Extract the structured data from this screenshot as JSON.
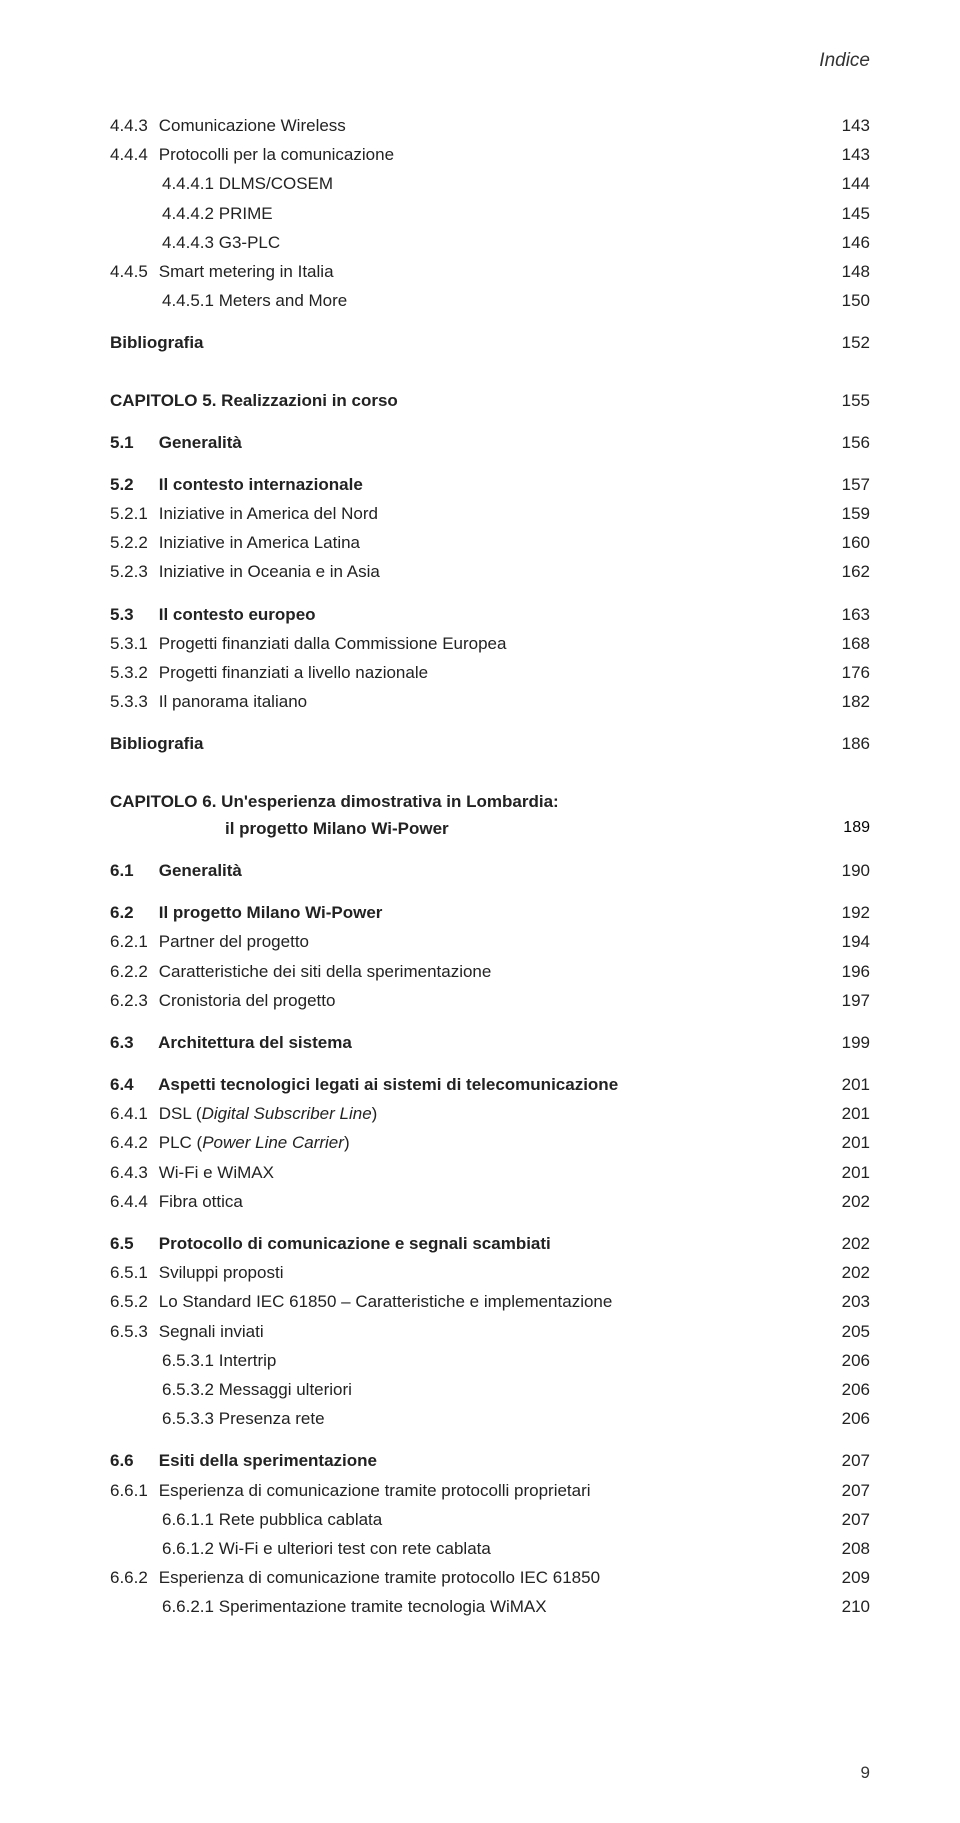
{
  "header": "Indice",
  "page_number": "9",
  "colors": {
    "text": "#222222",
    "header": "#333333",
    "background": "#ffffff"
  },
  "typography": {
    "base_font_size_pt": 13,
    "header_font_size_pt": 14,
    "font_family": "Verdana"
  },
  "entries": [
    {
      "level": 2,
      "indent": 0,
      "num": "4.4.3",
      "title": "Comunicazione Wireless",
      "page": "143"
    },
    {
      "level": 2,
      "indent": 0,
      "num": "4.4.4",
      "title": "Protocolli per la comunicazione",
      "page": "143"
    },
    {
      "level": 3,
      "indent": 3,
      "num": "4.4.4.1",
      "title": "DLMS/COSEM",
      "page": "144"
    },
    {
      "level": 3,
      "indent": 3,
      "num": "4.4.4.2",
      "title": "PRIME",
      "page": "145"
    },
    {
      "level": 3,
      "indent": 3,
      "num": "4.4.4.3",
      "title": "G3-PLC",
      "page": "146"
    },
    {
      "level": 2,
      "indent": 0,
      "num": "4.4.5",
      "title": "Smart metering in Italia",
      "page": "148"
    },
    {
      "level": 3,
      "indent": 3,
      "num": "4.4.5.1",
      "title": "Meters and More",
      "page": "150"
    },
    {
      "level": "biblio",
      "title": "Bibliografia",
      "page": "152"
    },
    {
      "level": 0,
      "indent": 0,
      "num": "CAPITOLO 5.",
      "title": "Realizzazioni in corso",
      "page": "155"
    },
    {
      "level": 1,
      "indent": 0,
      "num": "5.1",
      "title": "Generalità",
      "page": "156"
    },
    {
      "level": 1,
      "indent": 0,
      "num": "5.2",
      "title": "Il contesto internazionale",
      "page": "157"
    },
    {
      "level": 2,
      "indent": 0,
      "num": "5.2.1",
      "title": "Iniziative in America del Nord",
      "page": "159"
    },
    {
      "level": 2,
      "indent": 0,
      "num": "5.2.2",
      "title": "Iniziative in America Latina",
      "page": "160"
    },
    {
      "level": 2,
      "indent": 0,
      "num": "5.2.3",
      "title": "Iniziative in Oceania e in Asia",
      "page": "162"
    },
    {
      "level": 1,
      "indent": 0,
      "num": "5.3",
      "title": "Il contesto europeo",
      "page": "163"
    },
    {
      "level": 2,
      "indent": 0,
      "num": "5.3.1",
      "title": "Progetti finanziati dalla Commissione Europea",
      "page": "168"
    },
    {
      "level": 2,
      "indent": 0,
      "num": "5.3.2",
      "title": "Progetti finanziati a livello nazionale",
      "page": "176"
    },
    {
      "level": 2,
      "indent": 0,
      "num": "5.3.3",
      "title": "Il panorama italiano",
      "page": "182"
    },
    {
      "level": "biblio",
      "title": "Bibliografia",
      "page": "186"
    },
    {
      "level": 0,
      "indent": 0,
      "num": "CAPITOLO 6.",
      "title": "Un'esperienza dimostrativa in Lombardia:",
      "page": ""
    },
    {
      "level": "chap-sub",
      "title": "il progetto Milano Wi-Power",
      "page": "189"
    },
    {
      "level": 1,
      "indent": 0,
      "num": "6.1",
      "title": "Generalità",
      "page": "190"
    },
    {
      "level": 1,
      "indent": 0,
      "num": "6.2",
      "title": "Il progetto Milano Wi-Power",
      "page": "192"
    },
    {
      "level": 2,
      "indent": 0,
      "num": "6.2.1",
      "title": "Partner del progetto",
      "page": "194"
    },
    {
      "level": 2,
      "indent": 0,
      "num": "6.2.2",
      "title": "Caratteristiche dei siti della sperimentazione",
      "page": "196"
    },
    {
      "level": 2,
      "indent": 0,
      "num": "6.2.3",
      "title": "Cronistoria del progetto",
      "page": "197"
    },
    {
      "level": 1,
      "indent": 0,
      "num": "6.3",
      "title": "Architettura del sistema",
      "page": "199"
    },
    {
      "level": 1,
      "indent": 0,
      "num": "6.4",
      "title": "Aspetti tecnologici legati ai sistemi di telecomunicazione",
      "page": "201"
    },
    {
      "level": 2,
      "indent": 0,
      "num": "6.4.1",
      "title": "DSL (Digital Subscriber Line)",
      "page": "201",
      "italic_part": "Digital Subscriber Line"
    },
    {
      "level": 2,
      "indent": 0,
      "num": "6.4.2",
      "title": "PLC (Power Line Carrier)",
      "page": "201",
      "italic_part": "Power Line Carrier"
    },
    {
      "level": 2,
      "indent": 0,
      "num": "6.4.3",
      "title": "Wi-Fi e WiMAX",
      "page": "201"
    },
    {
      "level": 2,
      "indent": 0,
      "num": "6.4.4",
      "title": "Fibra ottica",
      "page": "202"
    },
    {
      "level": 1,
      "indent": 0,
      "num": "6.5",
      "title": "Protocollo di comunicazione e segnali scambiati",
      "page": "202"
    },
    {
      "level": 2,
      "indent": 0,
      "num": "6.5.1",
      "title": "Sviluppi proposti",
      "page": "202"
    },
    {
      "level": 2,
      "indent": 0,
      "num": "6.5.2",
      "title": "Lo Standard IEC 61850 – Caratteristiche e implementazione",
      "page": "203"
    },
    {
      "level": 2,
      "indent": 0,
      "num": "6.5.3",
      "title": "Segnali inviati",
      "page": "205"
    },
    {
      "level": 3,
      "indent": 3,
      "num": "6.5.3.1",
      "title": "Intertrip",
      "page": "206"
    },
    {
      "level": 3,
      "indent": 3,
      "num": "6.5.3.2",
      "title": "Messaggi ulteriori",
      "page": "206"
    },
    {
      "level": 3,
      "indent": 3,
      "num": "6.5.3.3",
      "title": "Presenza rete",
      "page": "206"
    },
    {
      "level": 1,
      "indent": 0,
      "num": "6.6",
      "title": "Esiti della sperimentazione",
      "page": "207"
    },
    {
      "level": 2,
      "indent": 0,
      "num": "6.6.1",
      "title": "Esperienza di comunicazione tramite protocolli proprietari",
      "page": "207"
    },
    {
      "level": 3,
      "indent": 3,
      "num": "6.6.1.1",
      "title": "Rete pubblica cablata",
      "page": "207"
    },
    {
      "level": 3,
      "indent": 3,
      "num": "6.6.1.2",
      "title": "Wi-Fi e ulteriori test con rete cablata",
      "page": "208"
    },
    {
      "level": 2,
      "indent": 0,
      "num": "6.6.2",
      "title": "Esperienza di comunicazione tramite protocollo IEC 61850",
      "page": "209"
    },
    {
      "level": 3,
      "indent": 3,
      "num": "6.6.2.1",
      "title": "Sperimentazione tramite tecnologia WiMAX",
      "page": "210"
    }
  ]
}
